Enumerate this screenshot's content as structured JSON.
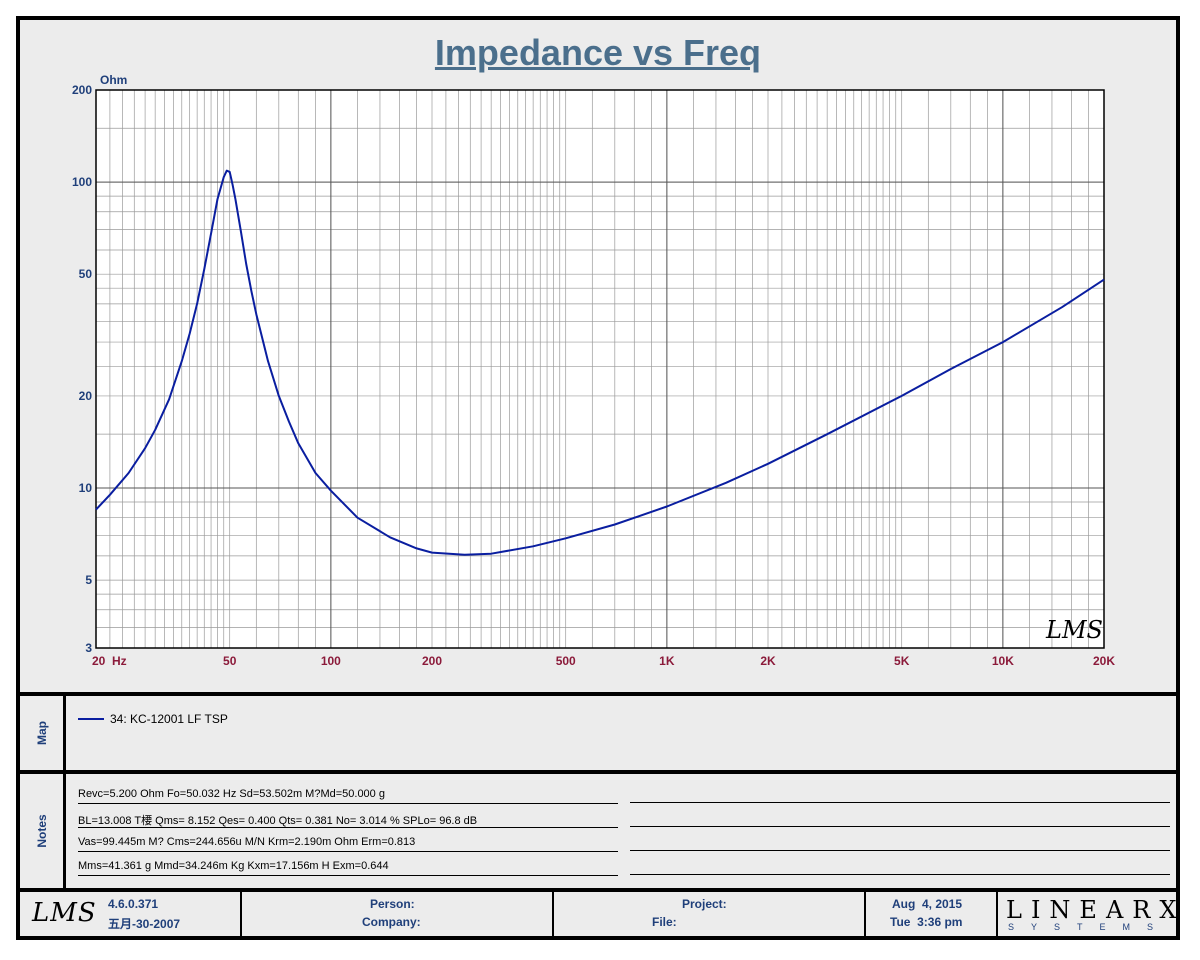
{
  "colors": {
    "curve": "#0a1ea0",
    "title": "#4b6f8c",
    "xtick": "#8b1a3a",
    "ytick": "#1f3f7a"
  },
  "chart_data": {
    "type": "line",
    "title": "Impedance vs Freq",
    "xlabel": "",
    "ylabel": "Ohm",
    "x_scale": "log",
    "y_scale": "log",
    "xlim": [
      20,
      20000
    ],
    "ylim": [
      3,
      200
    ],
    "grid": true,
    "x_ticks": [
      {
        "v": 20,
        "label": "20  Hz"
      },
      {
        "v": 50,
        "label": "50"
      },
      {
        "v": 100,
        "label": "100"
      },
      {
        "v": 200,
        "label": "200"
      },
      {
        "v": 500,
        "label": "500"
      },
      {
        "v": 1000,
        "label": "1K"
      },
      {
        "v": 2000,
        "label": "2K"
      },
      {
        "v": 5000,
        "label": "5K"
      },
      {
        "v": 10000,
        "label": "10K"
      },
      {
        "v": 20000,
        "label": "20K"
      }
    ],
    "y_ticks": [
      {
        "v": 3,
        "label": "3"
      },
      {
        "v": 5,
        "label": "5"
      },
      {
        "v": 10,
        "label": "10"
      },
      {
        "v": 20,
        "label": "20"
      },
      {
        "v": 50,
        "label": "50"
      },
      {
        "v": 100,
        "label": "100"
      },
      {
        "v": 200,
        "label": "200"
      }
    ],
    "series": [
      {
        "name": "34: KC-12001 LF TSP",
        "x": [
          20,
          22,
          25,
          28,
          30,
          33,
          36,
          38,
          40,
          42,
          44,
          46,
          48,
          49,
          50,
          51,
          52,
          54,
          56,
          58,
          60,
          65,
          70,
          75,
          80,
          90,
          100,
          120,
          150,
          180,
          200,
          250,
          300,
          400,
          500,
          700,
          1000,
          1500,
          2000,
          3000,
          5000,
          7000,
          10000,
          15000,
          20000
        ],
        "y": [
          8.5,
          9.5,
          11.2,
          13.5,
          15.5,
          19.5,
          26,
          32,
          40,
          52,
          68,
          88,
          104,
          109,
          108,
          98,
          88,
          69,
          54,
          44,
          37,
          26,
          20,
          16.5,
          14,
          11.2,
          9.8,
          8.0,
          6.9,
          6.35,
          6.15,
          6.05,
          6.1,
          6.45,
          6.85,
          7.6,
          8.7,
          10.4,
          12.0,
          15.0,
          20.0,
          24.5,
          30.0,
          39.0,
          48.0
        ]
      }
    ],
    "watermark": "LMS"
  },
  "map": {
    "label": "Map",
    "entry": "34: KC-12001 LF TSP"
  },
  "notes": {
    "label": "Notes",
    "lines": [
      "Revc=5.200 Ohm  Fo=50.032 Hz  Sd=53.502m M?Md=50.000 g",
      "BL=13.008 T楆  Qms= 8.152  Qes= 0.400  Qts= 0.381  No= 3.014 %  SPLo= 96.8 dB",
      "Vas=99.445m M? Cms=244.656u M/N  Krm=2.190m Ohm  Erm=0.813",
      "Mms=41.361 g  Mmd=34.246m Kg  Kxm=17.156m H  Exm=0.644"
    ]
  },
  "footer": {
    "logo": "LMS",
    "version": "4.6.0.371",
    "build_date": "五月-30-2007",
    "person_label": "Person:",
    "company_label": "Company:",
    "project_label": "Project:",
    "file_label": "File:",
    "date": "Aug  4, 2015",
    "time": "Tue  3:36 pm",
    "brand": "LINEARX",
    "brand_sub": "SYSTEMS"
  }
}
